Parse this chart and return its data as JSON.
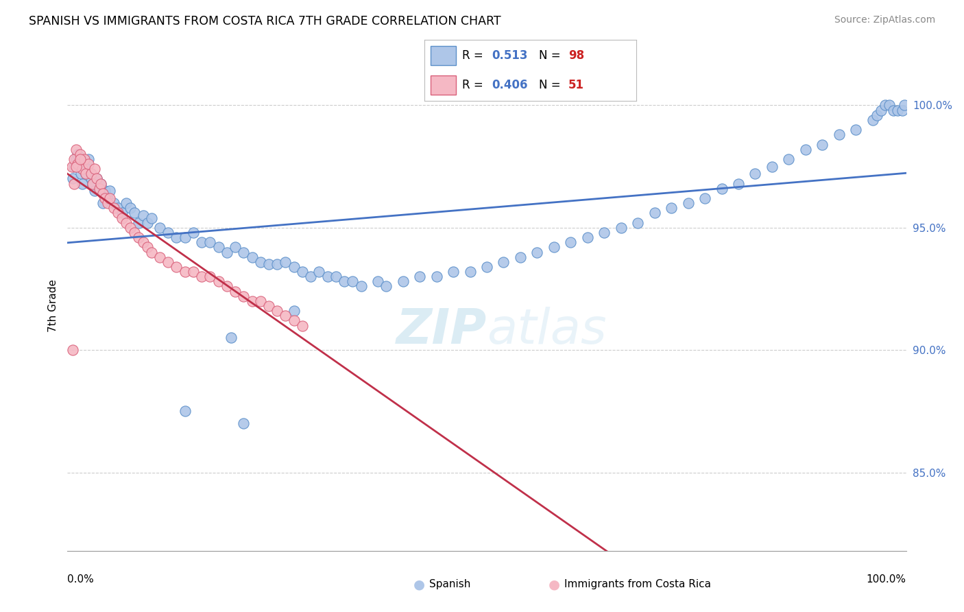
{
  "title": "SPANISH VS IMMIGRANTS FROM COSTA RICA 7TH GRADE CORRELATION CHART",
  "source": "Source: ZipAtlas.com",
  "ylabel": "7th Grade",
  "legend_blue_label": "Spanish",
  "legend_pink_label": "Immigrants from Costa Rica",
  "R_blue": 0.513,
  "N_blue": 98,
  "R_pink": 0.406,
  "N_pink": 51,
  "blue_color": "#aec6e8",
  "blue_edge_color": "#5b8fc9",
  "pink_color": "#f5b8c4",
  "pink_edge_color": "#d9607a",
  "blue_line_color": "#4472c4",
  "pink_line_color": "#c0304a",
  "watermark_zip": "ZIP",
  "watermark_atlas": "atlas",
  "xlim": [
    0.0,
    1.0
  ],
  "ylim": [
    0.818,
    1.018
  ],
  "yticks": [
    1.0,
    0.95,
    0.9,
    0.85
  ],
  "ytick_labels": [
    "100.0%",
    "95.0%",
    "90.0%",
    "85.0%"
  ],
  "blue_x": [
    0.006,
    0.008,
    0.01,
    0.012,
    0.014,
    0.016,
    0.018,
    0.02,
    0.022,
    0.025,
    0.028,
    0.03,
    0.032,
    0.035,
    0.038,
    0.04,
    0.042,
    0.045,
    0.048,
    0.05,
    0.055,
    0.06,
    0.065,
    0.07,
    0.075,
    0.08,
    0.085,
    0.09,
    0.095,
    0.1,
    0.11,
    0.12,
    0.13,
    0.14,
    0.15,
    0.16,
    0.17,
    0.18,
    0.19,
    0.2,
    0.21,
    0.22,
    0.23,
    0.24,
    0.25,
    0.26,
    0.27,
    0.28,
    0.29,
    0.3,
    0.31,
    0.32,
    0.33,
    0.34,
    0.35,
    0.37,
    0.38,
    0.4,
    0.42,
    0.44,
    0.46,
    0.48,
    0.5,
    0.52,
    0.54,
    0.56,
    0.58,
    0.6,
    0.62,
    0.64,
    0.66,
    0.68,
    0.7,
    0.72,
    0.74,
    0.76,
    0.78,
    0.8,
    0.82,
    0.84,
    0.86,
    0.88,
    0.9,
    0.92,
    0.94,
    0.96,
    0.965,
    0.97,
    0.975,
    0.98,
    0.985,
    0.99,
    0.995,
    0.998,
    0.27,
    0.195,
    0.14,
    0.21
  ],
  "blue_y": [
    0.97,
    0.975,
    0.978,
    0.98,
    0.976,
    0.972,
    0.968,
    0.975,
    0.972,
    0.978,
    0.97,
    0.968,
    0.965,
    0.97,
    0.966,
    0.968,
    0.96,
    0.965,
    0.962,
    0.965,
    0.96,
    0.958,
    0.956,
    0.96,
    0.958,
    0.956,
    0.952,
    0.955,
    0.952,
    0.954,
    0.95,
    0.948,
    0.946,
    0.946,
    0.948,
    0.944,
    0.944,
    0.942,
    0.94,
    0.942,
    0.94,
    0.938,
    0.936,
    0.935,
    0.935,
    0.936,
    0.934,
    0.932,
    0.93,
    0.932,
    0.93,
    0.93,
    0.928,
    0.928,
    0.926,
    0.928,
    0.926,
    0.928,
    0.93,
    0.93,
    0.932,
    0.932,
    0.934,
    0.936,
    0.938,
    0.94,
    0.942,
    0.944,
    0.946,
    0.948,
    0.95,
    0.952,
    0.956,
    0.958,
    0.96,
    0.962,
    0.966,
    0.968,
    0.972,
    0.975,
    0.978,
    0.982,
    0.984,
    0.988,
    0.99,
    0.994,
    0.996,
    0.998,
    1.0,
    1.0,
    0.998,
    0.998,
    0.998,
    1.0,
    0.916,
    0.905,
    0.875,
    0.87
  ],
  "pink_x": [
    0.005,
    0.008,
    0.01,
    0.012,
    0.015,
    0.018,
    0.02,
    0.022,
    0.025,
    0.028,
    0.03,
    0.032,
    0.035,
    0.038,
    0.04,
    0.042,
    0.045,
    0.048,
    0.05,
    0.055,
    0.06,
    0.065,
    0.07,
    0.075,
    0.08,
    0.085,
    0.09,
    0.095,
    0.1,
    0.11,
    0.12,
    0.13,
    0.14,
    0.15,
    0.16,
    0.17,
    0.18,
    0.19,
    0.2,
    0.21,
    0.22,
    0.23,
    0.24,
    0.25,
    0.26,
    0.27,
    0.28,
    0.01,
    0.015,
    0.008,
    0.006
  ],
  "pink_y": [
    0.975,
    0.978,
    0.982,
    0.976,
    0.98,
    0.974,
    0.978,
    0.972,
    0.976,
    0.972,
    0.968,
    0.974,
    0.97,
    0.966,
    0.968,
    0.964,
    0.962,
    0.96,
    0.962,
    0.958,
    0.956,
    0.954,
    0.952,
    0.95,
    0.948,
    0.946,
    0.944,
    0.942,
    0.94,
    0.938,
    0.936,
    0.934,
    0.932,
    0.932,
    0.93,
    0.93,
    0.928,
    0.926,
    0.924,
    0.922,
    0.92,
    0.92,
    0.918,
    0.916,
    0.914,
    0.912,
    0.91,
    0.975,
    0.978,
    0.968,
    0.9
  ]
}
